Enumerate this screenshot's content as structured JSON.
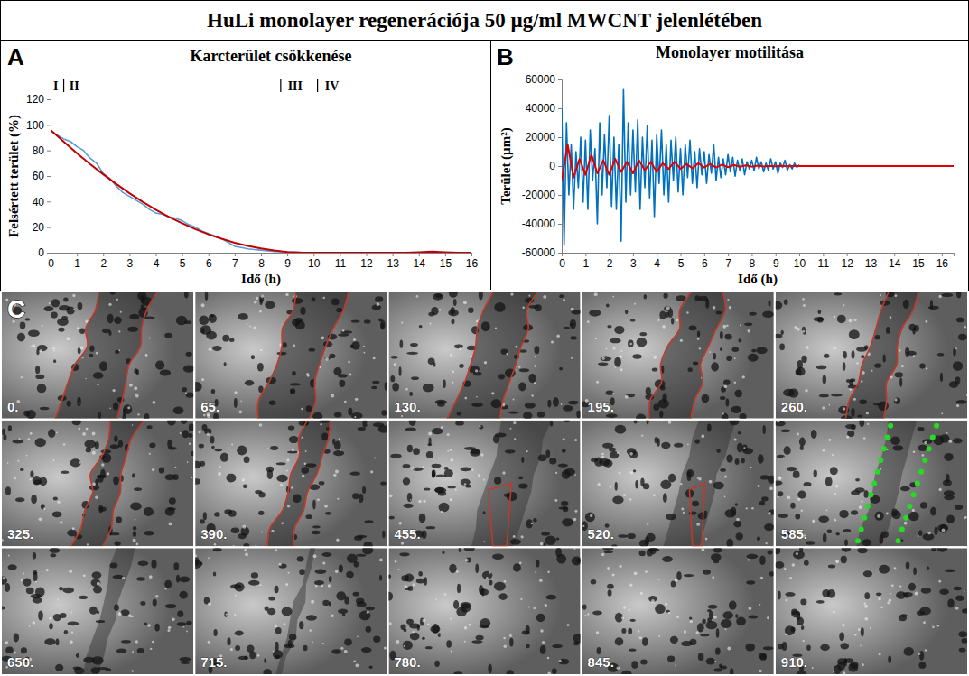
{
  "title": "HuLi monolayer regenerációja 50 µg/ml MWCNT jelenlétében",
  "chart_data": [
    {
      "type": "line",
      "panel": "A",
      "title": "Karcterület csökkenése",
      "x_label": "Idő (h)",
      "y_label": "Felsértett terület (%)",
      "xlim": [
        0,
        16
      ],
      "ylim": [
        0,
        120
      ],
      "xticks": [
        0,
        1,
        2,
        3,
        4,
        5,
        6,
        7,
        8,
        9,
        10,
        11,
        12,
        13,
        14,
        15,
        16
      ],
      "yticks": [
        0,
        20,
        40,
        60,
        80,
        100,
        120
      ],
      "grid": false,
      "annotations": [
        {
          "text": "I",
          "x": 0.2
        },
        {
          "text": "II",
          "x": 0.9
        },
        {
          "text": "III",
          "x": 9.3
        },
        {
          "text": "IV",
          "x": 10.7
        }
      ],
      "annotation_lines": [
        0.5,
        8.75,
        10.15
      ],
      "series": [
        {
          "color": "#5b9bd5",
          "x": [
            0,
            0.25,
            0.5,
            0.75,
            1,
            1.25,
            1.5,
            1.75,
            2,
            2.25,
            2.5,
            2.75,
            3,
            3.25,
            3.5,
            3.75,
            4,
            4.25,
            4.5,
            4.75,
            5,
            5.25,
            5.5,
            5.75,
            6,
            6.25,
            6.5,
            6.75,
            7,
            7.25,
            7.5,
            7.75,
            8,
            8.25,
            8.5,
            8.75,
            9,
            9.25,
            9.5,
            9.75,
            10,
            10.25,
            10.5,
            10.75,
            11,
            11.25,
            11.5,
            11.75,
            12,
            12.25,
            12.5,
            12.75,
            13,
            13.25,
            13.5,
            13.75,
            14,
            14.25,
            14.5,
            14.75,
            15,
            15.25,
            15.5,
            15.75,
            16
          ],
          "values": [
            95,
            92,
            89,
            87,
            83,
            80,
            74,
            70,
            62,
            58,
            52,
            47,
            44,
            41,
            38,
            34,
            31,
            30,
            28,
            27,
            25,
            22,
            20,
            17,
            15,
            13,
            11,
            8,
            5,
            4,
            3,
            2.5,
            2,
            1.5,
            1,
            0.8,
            0.5,
            0.3,
            0.2,
            0,
            0,
            0,
            0,
            0,
            0,
            0,
            0,
            0,
            0,
            0,
            0,
            0,
            0,
            0,
            0,
            0,
            0,
            0,
            0,
            0,
            0,
            0,
            0,
            0,
            0
          ]
        },
        {
          "color": "#c00000",
          "x": [
            0,
            0.5,
            1,
            1.5,
            2,
            2.5,
            3,
            3.5,
            4,
            4.5,
            5,
            5.5,
            6,
            6.5,
            7,
            7.5,
            8,
            8.5,
            9,
            9.5,
            10,
            10.5,
            11,
            11.5,
            12,
            12.5,
            13,
            13.5,
            14,
            14.5,
            15,
            15.5,
            16
          ],
          "values": [
            96,
            86.8,
            77.8,
            69.3,
            61.3,
            53.7,
            46.5,
            39.8,
            33.6,
            28,
            23,
            18.4,
            14.4,
            10.9,
            7.8,
            5.3,
            3.3,
            1.7,
            0.6,
            0.1,
            0,
            0,
            0,
            0,
            0,
            0,
            0,
            0,
            0.4,
            0.8,
            0.4,
            0,
            0
          ]
        }
      ]
    },
    {
      "type": "line",
      "panel": "B",
      "title": "Monolayer motilitása",
      "x_label": "Idő (h)",
      "y_label": "Terület (µm²)",
      "xlim": [
        0,
        16.5
      ],
      "ylim": [
        -60000,
        60000
      ],
      "xticks": [
        0,
        1,
        2,
        3,
        4,
        5,
        6,
        7,
        8,
        9,
        10,
        11,
        12,
        13,
        14,
        15,
        16
      ],
      "yticks": [
        -60000,
        -40000,
        -20000,
        0,
        20000,
        40000,
        60000
      ],
      "grid": false,
      "series": [
        {
          "color": "#0070c0",
          "x": [
            0,
            0.1,
            0.2,
            0.3,
            0.4,
            0.5,
            0.6,
            0.7,
            0.8,
            0.9,
            1,
            1.1,
            1.2,
            1.3,
            1.4,
            1.5,
            1.6,
            1.7,
            1.8,
            1.9,
            2,
            2.1,
            2.2,
            2.3,
            2.4,
            2.5,
            2.6,
            2.7,
            2.8,
            2.9,
            3,
            3.1,
            3.2,
            3.3,
            3.4,
            3.5,
            3.6,
            3.7,
            3.8,
            3.9,
            4,
            4.1,
            4.2,
            4.3,
            4.4,
            4.5,
            4.6,
            4.7,
            4.8,
            4.9,
            5,
            5.1,
            5.2,
            5.3,
            5.4,
            5.5,
            5.6,
            5.7,
            5.8,
            5.9,
            6,
            6.1,
            6.2,
            6.3,
            6.4,
            6.5,
            6.6,
            6.7,
            6.8,
            6.9,
            7,
            7.1,
            7.2,
            7.3,
            7.4,
            7.5,
            7.6,
            7.7,
            7.8,
            7.9,
            8,
            8.1,
            8.2,
            8.3,
            8.4,
            8.5,
            8.6,
            8.7,
            8.8,
            8.9,
            9,
            9.1,
            9.2,
            9.3,
            9.4,
            9.5,
            9.6,
            9.7,
            9.8,
            9.9,
            10
          ],
          "values": [
            40000,
            -55000,
            30000,
            -20000,
            15000,
            -30000,
            10000,
            -15000,
            20000,
            -25000,
            18000,
            -30000,
            25000,
            -10000,
            12000,
            -40000,
            30000,
            -20000,
            22000,
            -15000,
            35000,
            -28000,
            20000,
            -30000,
            15000,
            -52000,
            53000,
            -25000,
            30000,
            -20000,
            25000,
            -18000,
            32000,
            -30000,
            20000,
            -15000,
            28000,
            -22000,
            18000,
            -35000,
            22000,
            -12000,
            25000,
            -20000,
            15000,
            -25000,
            18000,
            -10000,
            20000,
            -18000,
            12000,
            -20000,
            15000,
            -8000,
            18000,
            -12000,
            10000,
            -15000,
            12000,
            -6000,
            10000,
            -12000,
            8000,
            -5000,
            15000,
            -10000,
            6000,
            -8000,
            5000,
            -6000,
            8000,
            -4000,
            6000,
            -7000,
            4000,
            -3000,
            5000,
            -6000,
            3000,
            -2000,
            4000,
            -3000,
            6000,
            -2000,
            3000,
            -4000,
            2000,
            -3000,
            5000,
            -2000,
            3000,
            -5000,
            2000,
            -1000,
            4000,
            -3000,
            1000,
            -2000,
            2000,
            -1000,
            1000
          ]
        },
        {
          "color": "#e00000",
          "x": [
            0,
            0.25,
            0.5,
            0.75,
            1,
            1.25,
            1.5,
            1.75,
            2,
            2.25,
            2.5,
            2.75,
            3,
            3.25,
            3.5,
            3.75,
            4,
            4.25,
            4.5,
            4.75,
            5,
            5.25,
            5.5,
            5.75,
            6,
            6.25,
            6.5,
            6.75,
            7,
            7.25,
            7.5,
            7.75,
            8,
            8.25,
            8.5,
            8.75,
            9,
            9.25,
            9.5,
            9.75,
            10,
            10.25,
            10.5,
            10.75,
            11,
            11.25,
            11.5,
            11.75,
            12,
            12.25,
            12.5,
            12.75,
            13,
            13.25,
            13.5,
            13.75,
            14,
            14.25,
            14.5,
            14.75,
            15,
            15.25,
            15.5,
            15.75,
            16,
            16.25,
            16.5
          ],
          "values": [
            -10000,
            15000,
            -8000,
            5000,
            -6000,
            8000,
            -5000,
            4000,
            -6000,
            5000,
            -4000,
            3000,
            -5000,
            4000,
            -3000,
            3000,
            -4000,
            2000,
            -2000,
            3000,
            -2000,
            1500,
            -1500,
            2000,
            -1000,
            1500,
            -1000,
            1000,
            -800,
            800,
            -500,
            500,
            -400,
            300,
            -300,
            200,
            -200,
            100,
            -100,
            0,
            0,
            0,
            0,
            0,
            0,
            0,
            0,
            0,
            0,
            0,
            0,
            0,
            0,
            0,
            0,
            0,
            0,
            0,
            0,
            0,
            0,
            0,
            0,
            0,
            0,
            0,
            0
          ]
        }
      ]
    }
  ],
  "image_panel": {
    "panel": "C",
    "frame_labels": [
      "0.",
      "65.",
      "130.",
      "195.",
      "260.",
      "325.",
      "390.",
      "455.",
      "520.",
      "585.",
      "650.",
      "715.",
      "780.",
      "845.",
      "910."
    ]
  }
}
